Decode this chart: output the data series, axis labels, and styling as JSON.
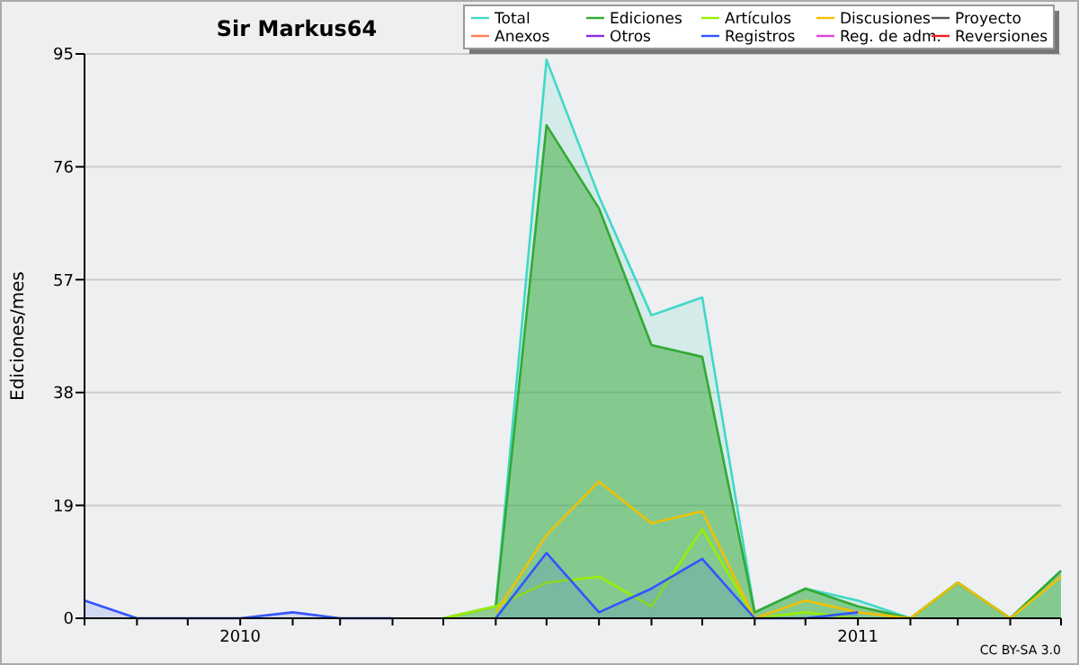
{
  "chart_data": {
    "type": "line",
    "title": "Sir Markus64",
    "ylabel": "Ediciones/mes",
    "annotations": [
      "CC BY-SA 3.0"
    ],
    "x": [
      "2009-10",
      "2009-11",
      "2009-12",
      "2010-01",
      "2010-02",
      "2010-03",
      "2010-04",
      "2010-05",
      "2010-06",
      "2010-07",
      "2010-08",
      "2010-09",
      "2010-10",
      "2010-11",
      "2010-12",
      "2011-01",
      "2011-02",
      "2011-03",
      "2011-04",
      "2011-05"
    ],
    "xlim": [
      "2009-10",
      "2011-05"
    ],
    "xticks": [
      {
        "value": "2009-10",
        "label": null
      },
      {
        "value": "2009-11",
        "label": null
      },
      {
        "value": "2009-12",
        "label": null
      },
      {
        "value": "2010-01",
        "label": "2010"
      },
      {
        "value": "2010-02",
        "label": null
      },
      {
        "value": "2010-03",
        "label": null
      },
      {
        "value": "2010-04",
        "label": null
      },
      {
        "value": "2010-05",
        "label": null
      },
      {
        "value": "2010-06",
        "label": null
      },
      {
        "value": "2010-07",
        "label": null
      },
      {
        "value": "2010-08",
        "label": null
      },
      {
        "value": "2010-09",
        "label": null
      },
      {
        "value": "2010-10",
        "label": null
      },
      {
        "value": "2010-11",
        "label": null
      },
      {
        "value": "2010-12",
        "label": null
      },
      {
        "value": "2011-01",
        "label": "2011"
      },
      {
        "value": "2011-02",
        "label": null
      },
      {
        "value": "2011-03",
        "label": null
      },
      {
        "value": "2011-04",
        "label": null
      },
      {
        "value": "2011-05",
        "label": null
      }
    ],
    "ylim": [
      0,
      95
    ],
    "yticks": [
      0,
      19,
      38,
      57,
      76,
      95
    ],
    "grid": "y",
    "legend": "top right",
    "series": [
      {
        "name": "Total",
        "type": "area",
        "color": "#40d8c8",
        "values": [
          null,
          null,
          null,
          null,
          null,
          null,
          null,
          null,
          2,
          94,
          71,
          51,
          54,
          1,
          5,
          3,
          0,
          6,
          0,
          8
        ]
      },
      {
        "name": "Ediciones",
        "type": "area",
        "color": "#33aa33",
        "values": [
          null,
          null,
          null,
          null,
          null,
          null,
          null,
          0,
          2,
          83,
          69,
          46,
          44,
          1,
          5,
          2,
          0,
          6,
          0,
          8
        ]
      },
      {
        "name": "Artículos",
        "color": "#99ee00",
        "values": [
          null,
          null,
          null,
          null,
          null,
          null,
          null,
          0,
          2,
          6,
          7,
          2,
          15,
          0,
          1,
          0,
          null,
          null,
          null,
          null
        ]
      },
      {
        "name": "Discusiones",
        "color": "#f0c000",
        "values": [
          null,
          null,
          null,
          null,
          null,
          null,
          null,
          null,
          1,
          14,
          23,
          16,
          18,
          0,
          3,
          1,
          0,
          6,
          0,
          7
        ]
      },
      {
        "name": "Proyecto",
        "color": "#555555",
        "values": [
          null,
          null,
          null,
          null,
          null,
          null,
          null,
          null,
          null,
          null,
          null,
          null,
          null,
          null,
          null,
          null,
          null,
          null,
          null,
          null
        ]
      },
      {
        "name": "Anexos",
        "color": "#ff7f50",
        "values": [
          null,
          null,
          null,
          null,
          null,
          null,
          null,
          null,
          null,
          null,
          null,
          null,
          null,
          null,
          null,
          null,
          null,
          null,
          null,
          null
        ]
      },
      {
        "name": "Otros",
        "color": "#8a2be2",
        "values": [
          null,
          null,
          null,
          null,
          null,
          null,
          null,
          null,
          null,
          null,
          null,
          null,
          null,
          null,
          null,
          null,
          null,
          null,
          null,
          null
        ]
      },
      {
        "name": "Registros",
        "type": "area",
        "color": "#3355ff",
        "values": [
          3,
          0,
          0,
          0,
          1,
          0,
          0,
          null,
          0,
          11,
          1,
          5,
          10,
          0,
          0,
          1,
          null,
          null,
          null,
          null
        ]
      },
      {
        "name": "Reg. de adm.",
        "color": "#dd44dd",
        "values": [
          null,
          null,
          null,
          null,
          null,
          null,
          null,
          null,
          null,
          null,
          null,
          null,
          null,
          null,
          null,
          null,
          null,
          null,
          null,
          null
        ]
      },
      {
        "name": "Reversiones",
        "color": "#ee2222",
        "values": [
          null,
          null,
          null,
          null,
          null,
          null,
          null,
          null,
          null,
          null,
          null,
          null,
          null,
          null,
          null,
          null,
          null,
          null,
          null,
          null
        ]
      }
    ]
  }
}
